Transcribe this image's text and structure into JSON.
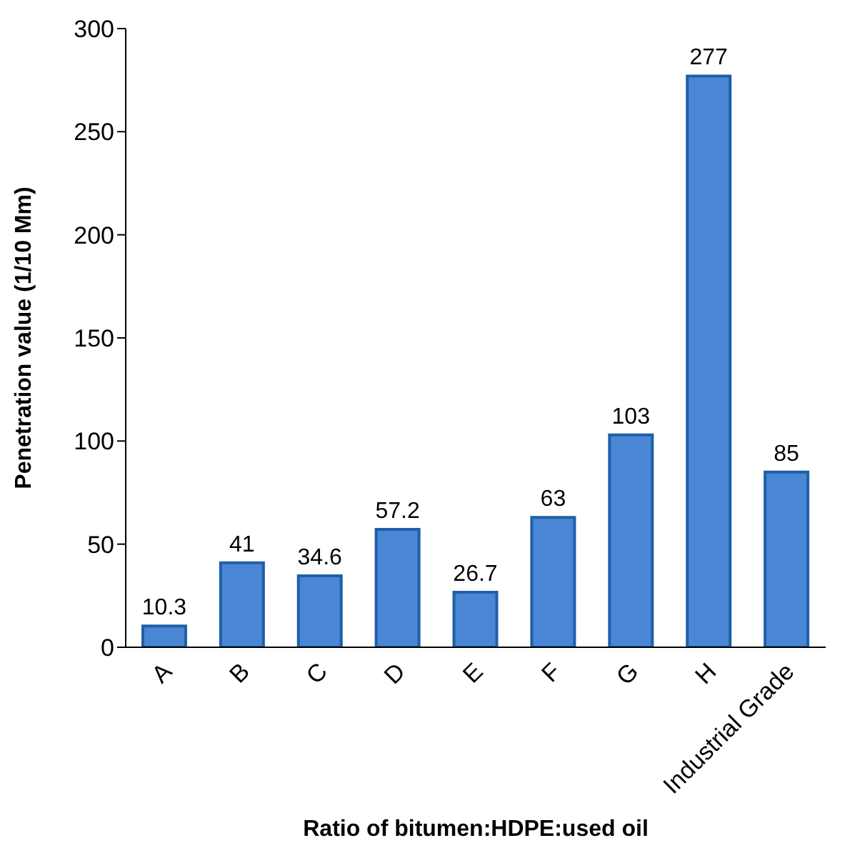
{
  "chart_data": {
    "type": "bar",
    "xlabel": "Ratio of bitumen:HDPE:used oil",
    "ylabel": "Penetration value (1/10 Mm)",
    "categories": [
      "A",
      "B",
      "C",
      "D",
      "E",
      "F",
      "G",
      "H",
      "Industrial Grade"
    ],
    "values": [
      10.3,
      41,
      34.6,
      57.2,
      26.7,
      63,
      103,
      277,
      85
    ],
    "color": "#4a86d4",
    "ylim": [
      0,
      300
    ],
    "yticks": [
      0,
      50,
      100,
      150,
      200,
      250,
      300
    ],
    "data_labels": true,
    "grid": false
  }
}
